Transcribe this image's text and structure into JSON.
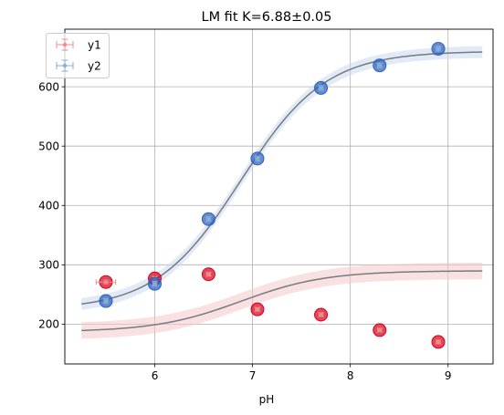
{
  "chart_data": {
    "type": "scatter",
    "title": "LM fit K=6.88±0.05",
    "xlabel": "pH",
    "ylabel": "",
    "xlim": [
      5.08,
      9.46
    ],
    "ylim": [
      133,
      697
    ],
    "xticks": [
      6,
      7,
      8,
      9
    ],
    "yticks": [
      200,
      300,
      400,
      500,
      600
    ],
    "grid": true,
    "legend_position": "upper-left",
    "series": [
      {
        "name": "y1",
        "color": "#d6001c",
        "errorbar_color": "#f08c8c",
        "x": [
          5.5,
          6.0,
          6.55,
          7.05,
          7.7,
          8.3,
          8.9
        ],
        "y": [
          271,
          277,
          284,
          225,
          216,
          190,
          170
        ],
        "x_err": [
          0.1,
          0.02,
          0.02,
          0.02,
          0.02,
          0.02,
          0.02
        ],
        "y_err": [
          3,
          3,
          3,
          3,
          3,
          3,
          3
        ],
        "fit": {
          "bottom": 187,
          "top": 290,
          "K": 6.88,
          "band": 14
        },
        "band_color": "#f4c8c8"
      },
      {
        "name": "y2",
        "color": "#2a5fc2",
        "errorbar_color": "#8aaed2",
        "x": [
          5.5,
          6.0,
          6.55,
          7.05,
          7.7,
          8.3,
          8.9
        ],
        "y": [
          239,
          268,
          377,
          479,
          598,
          636,
          664
        ],
        "x_err": [
          0.02,
          0.02,
          0.02,
          0.02,
          0.02,
          0.02,
          0.02
        ],
        "y_err": [
          4,
          4,
          4,
          4,
          4,
          4,
          4
        ],
        "fit": {
          "bottom": 224,
          "top": 660,
          "K": 6.88,
          "band": 10
        },
        "band_color": "#c9d9ee"
      }
    ],
    "fit_color": "#777b80"
  }
}
